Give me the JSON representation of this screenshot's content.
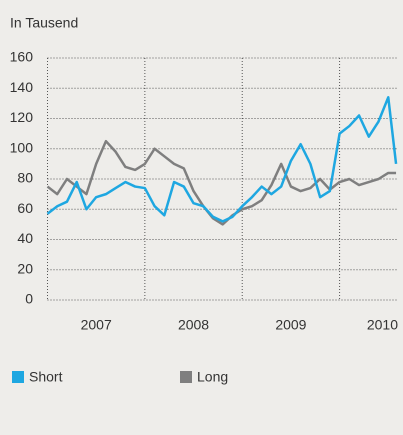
{
  "chart_data": {
    "type": "line",
    "subtitle": "In Tausend",
    "x": [
      2007.0,
      2007.1,
      2007.2,
      2007.3,
      2007.4,
      2007.5,
      2007.6,
      2007.7,
      2007.8,
      2007.9,
      2008.0,
      2008.1,
      2008.2,
      2008.3,
      2008.4,
      2008.5,
      2008.6,
      2008.7,
      2008.8,
      2008.9,
      2009.0,
      2009.1,
      2009.2,
      2009.3,
      2009.4,
      2009.5,
      2009.6,
      2009.7,
      2009.8,
      2009.9,
      2010.0,
      2010.1,
      2010.2,
      2010.3,
      2010.4,
      2010.5,
      2010.58
    ],
    "series": [
      {
        "name": "Short",
        "color": "#1ea7e1",
        "values": [
          57,
          62,
          65,
          78,
          60,
          68,
          70,
          74,
          78,
          75,
          74,
          62,
          56,
          78,
          75,
          64,
          62,
          55,
          52,
          55,
          62,
          68,
          75,
          70,
          75,
          92,
          103,
          90,
          68,
          72,
          110,
          115,
          122,
          108,
          118,
          134,
          90
        ]
      },
      {
        "name": "Long",
        "color": "#7f7f7f",
        "values": [
          75,
          70,
          80,
          75,
          70,
          90,
          105,
          98,
          88,
          86,
          90,
          100,
          95,
          90,
          87,
          72,
          62,
          54,
          50,
          56,
          60,
          62,
          66,
          76,
          90,
          75,
          72,
          74,
          80,
          73,
          78,
          80,
          76,
          78,
          80,
          84,
          84
        ]
      }
    ],
    "xlim": [
      2007.0,
      2010.6
    ],
    "xticks": [
      {
        "value": 2007.5,
        "label": "2007"
      },
      {
        "value": 2008.5,
        "label": "2008"
      },
      {
        "value": 2009.5,
        "label": "2009"
      },
      {
        "value": 2010.44,
        "label": "2010"
      }
    ],
    "xgrid": [
      2008,
      2009,
      2010
    ],
    "ylim": [
      0,
      160
    ],
    "yticks": [
      0,
      20,
      40,
      60,
      80,
      100,
      120,
      140,
      160
    ],
    "grid": true
  }
}
